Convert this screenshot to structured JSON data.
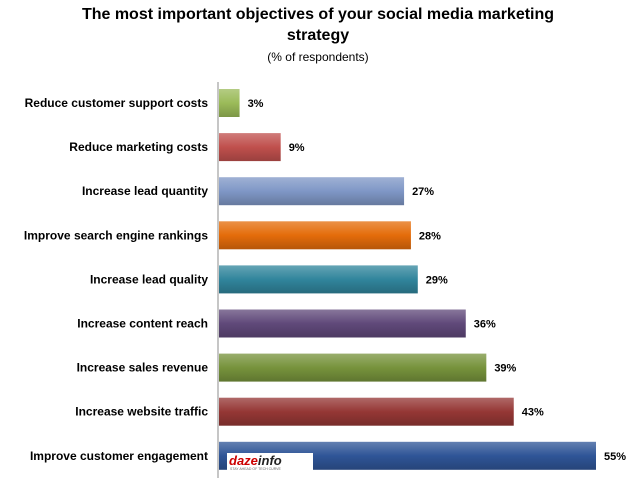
{
  "chart_data": {
    "type": "bar",
    "orientation": "horizontal",
    "title": "The most important objectives of your social media marketing strategy",
    "title_lines": [
      "The most important objectives of your social media marketing",
      "strategy"
    ],
    "subtitle": "(% of respondents)",
    "categories": [
      "Reduce customer support costs",
      "Reduce marketing costs",
      "Increase lead quantity",
      "Improve search engine rankings",
      "Increase lead quality",
      "Increase content reach",
      "Increase sales revenue",
      "Increase website traffic",
      "Improve customer engagement"
    ],
    "values": [
      3,
      9,
      27,
      28,
      29,
      36,
      39,
      43,
      55
    ],
    "value_labels": [
      "3%",
      "9%",
      "27%",
      "28%",
      "29%",
      "36%",
      "39%",
      "43%",
      "55%"
    ],
    "colors": [
      "#9BBB59",
      "#C0504D",
      "#7F97C6",
      "#E46C0A",
      "#31859C",
      "#60497A",
      "#77933C",
      "#953735",
      "#2F5597"
    ],
    "xlim": [
      0,
      55
    ],
    "grid": false,
    "legend": "none"
  },
  "logo": {
    "text": "dazeinfo",
    "tagline": "STAY AHEAD OF TECH CURVE"
  }
}
